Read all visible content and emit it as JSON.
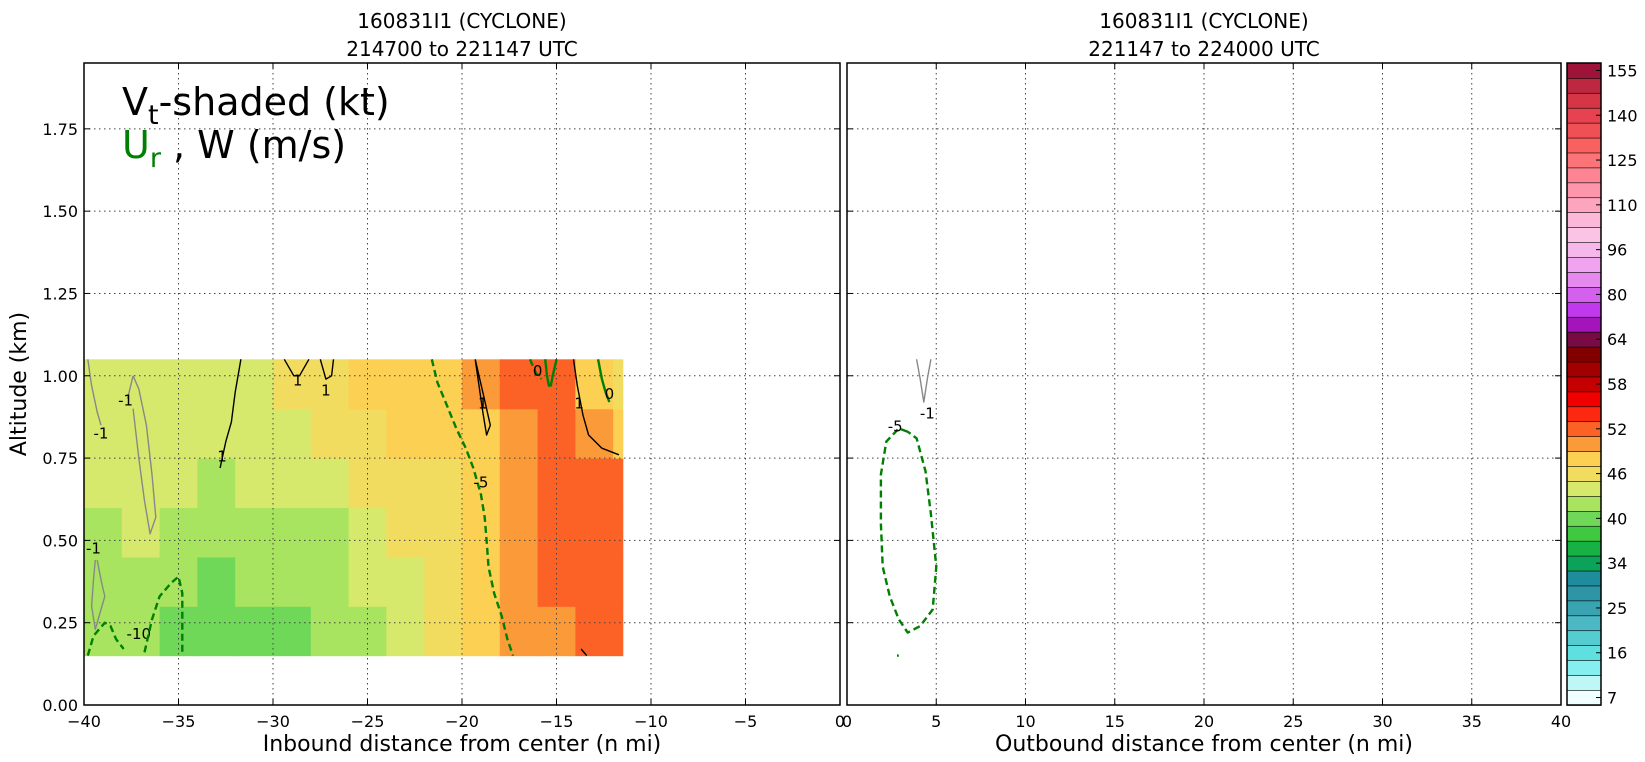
{
  "chart_data": [
    {
      "type": "heatmap",
      "panel": "inbound",
      "title_line1": "160831I1 (CYCLONE)",
      "title_line2": "214700 to 221147 UTC",
      "xlabel": "Inbound distance from center (n mi)",
      "ylabel": "Altitude (km)",
      "xlim": [
        -40,
        0
      ],
      "ylim": [
        0,
        1.95
      ],
      "xticks": [
        "−40",
        "−35",
        "−30",
        "−25",
        "−20",
        "−15",
        "−10",
        "−5",
        "0"
      ],
      "xtick_values": [
        -40,
        -35,
        -30,
        -25,
        -20,
        -15,
        -10,
        -5,
        0
      ],
      "yticks": [
        "0.00",
        "0.25",
        "0.50",
        "0.75",
        "1.00",
        "1.25",
        "1.50",
        "1.75"
      ],
      "ytick_values": [
        0,
        0.25,
        0.5,
        0.75,
        1.0,
        1.25,
        1.5,
        1.75
      ],
      "grid": true,
      "legend_text": {
        "line1_main": "V",
        "line1_sub": "t",
        "line1_rest": "-shaded (kt)",
        "line2_main": "U",
        "line2_sub": "r",
        "line2_rest": " , W (m/s)"
      },
      "data_extent": {
        "x": [
          -40,
          -11.5
        ],
        "y": [
          0.15,
          1.05
        ]
      },
      "shaded_vt_kt": {
        "x": [
          -40,
          -38,
          -36,
          -34,
          -32,
          -30,
          -28,
          -26,
          -24,
          -22,
          -20,
          -18,
          -16,
          -14,
          -12,
          -11.5
        ],
        "y": [
          0.15,
          0.3,
          0.45,
          0.6,
          0.75,
          0.9,
          1.05
        ],
        "values": [
          [
            42,
            44,
            41,
            40,
            40,
            41,
            41,
            43,
            44,
            45,
            47,
            50,
            51,
            52,
            52,
            52
          ],
          [
            42,
            44,
            43,
            41,
            41,
            42,
            41,
            43,
            44,
            46,
            47,
            50,
            51,
            53,
            53,
            53
          ],
          [
            43,
            44,
            44,
            42,
            42,
            43,
            42,
            44,
            45,
            46,
            48,
            50,
            51,
            53,
            54,
            54
          ],
          [
            44,
            44,
            44,
            43,
            43,
            44,
            43,
            45,
            46,
            47,
            48,
            50,
            52,
            53,
            53,
            53
          ],
          [
            45,
            44,
            45,
            44,
            44,
            45,
            45,
            46,
            47,
            48,
            48,
            50,
            52,
            53,
            51,
            51
          ],
          [
            46,
            45,
            46,
            45,
            44,
            46,
            47,
            48,
            48,
            49,
            49,
            51,
            53,
            52,
            48,
            47
          ],
          [
            46,
            45,
            45,
            44,
            44,
            46,
            47,
            48,
            49,
            49,
            49,
            51,
            53,
            51,
            46,
            45
          ]
        ]
      },
      "contours": [
        {
          "kind": "w",
          "color": "gray",
          "style": "solid",
          "label": "-1",
          "label_at": [
            -39.1,
            0.81
          ],
          "path": [
            [
              -39.8,
              1.05
            ],
            [
              -39.6,
              0.97
            ],
            [
              -39.3,
              0.89
            ],
            [
              -39.1,
              0.85
            ]
          ]
        },
        {
          "kind": "w",
          "color": "gray",
          "style": "solid",
          "label": "-1",
          "label_at": [
            -37.8,
            0.91
          ],
          "path": [
            [
              -37.4,
              1.0
            ],
            [
              -37.7,
              0.93
            ]
          ]
        },
        {
          "kind": "w",
          "color": "gray",
          "style": "solid",
          "label": "",
          "path": [
            [
              -37.4,
              0.9
            ],
            [
              -37.1,
              0.75
            ],
            [
              -36.8,
              0.62
            ],
            [
              -36.5,
              0.52
            ],
            [
              -36.2,
              0.57
            ],
            [
              -36.4,
              0.7
            ],
            [
              -36.7,
              0.85
            ],
            [
              -37.1,
              0.96
            ],
            [
              -37.4,
              1.0
            ]
          ]
        },
        {
          "kind": "w",
          "color": "gray",
          "style": "solid",
          "label": "-1",
          "label_at": [
            -39.5,
            0.46
          ],
          "path": [
            [
              -39.4,
              0.44
            ],
            [
              -39.5,
              0.38
            ],
            [
              -39.6,
              0.3
            ],
            [
              -39.4,
              0.23
            ],
            [
              -39.1,
              0.29
            ],
            [
              -38.9,
              0.33
            ],
            [
              -39.1,
              0.38
            ],
            [
              -39.3,
              0.44
            ]
          ]
        },
        {
          "kind": "w",
          "color": "black",
          "style": "solid",
          "label": "1",
          "label_at": [
            -32.7,
            0.74
          ],
          "path": [
            [
              -31.7,
              1.05
            ],
            [
              -32.0,
              0.95
            ],
            [
              -32.2,
              0.86
            ],
            [
              -32.5,
              0.8
            ],
            [
              -32.8,
              0.72
            ]
          ]
        },
        {
          "kind": "w",
          "color": "black",
          "style": "solid",
          "label": "1",
          "label_at": [
            -28.7,
            0.97
          ],
          "path": [
            [
              -29.4,
              1.05
            ],
            [
              -28.9,
              1.0
            ],
            [
              -28.6,
              1.0
            ],
            [
              -28.1,
              1.05
            ]
          ]
        },
        {
          "kind": "w",
          "color": "black",
          "style": "solid",
          "label": "1",
          "label_at": [
            -27.2,
            0.94
          ],
          "path": [
            [
              -27.5,
              1.05
            ],
            [
              -27.2,
              0.99
            ],
            [
              -26.9,
              1.0
            ],
            [
              -26.8,
              1.05
            ]
          ]
        },
        {
          "kind": "w",
          "color": "black",
          "style": "solid",
          "label": "1",
          "label_at": [
            -18.9,
            0.9
          ],
          "path": [
            [
              -19.3,
              1.05
            ],
            [
              -19.1,
              0.97
            ],
            [
              -18.9,
              0.89
            ],
            [
              -18.7,
              0.82
            ],
            [
              -18.5,
              0.85
            ],
            [
              -18.9,
              0.95
            ],
            [
              -19.3,
              1.05
            ]
          ]
        },
        {
          "kind": "w",
          "color": "black",
          "style": "solid",
          "label": "1",
          "label_at": [
            -13.8,
            0.9
          ],
          "path": [
            [
              -14.1,
              1.05
            ],
            [
              -13.9,
              0.97
            ],
            [
              -13.6,
              0.88
            ],
            [
              -13.3,
              0.82
            ],
            [
              -12.6,
              0.78
            ],
            [
              -11.7,
              0.76
            ]
          ]
        },
        {
          "kind": "w",
          "color": "black",
          "style": "solid",
          "label": "",
          "path": [
            [
              -13.7,
              0.17
            ],
            [
              -13.4,
              0.15
            ]
          ]
        },
        {
          "kind": "ur",
          "color": "green",
          "style": "dashed",
          "label": "-10",
          "label_at": [
            -37.1,
            0.2
          ],
          "path": [
            [
              -39.8,
              0.15
            ],
            [
              -39.5,
              0.21
            ],
            [
              -38.9,
              0.25
            ],
            [
              -38.6,
              0.24
            ],
            [
              -38.3,
              0.2
            ],
            [
              -37.9,
              0.17
            ]
          ]
        },
        {
          "kind": "ur",
          "color": "green",
          "style": "dashed",
          "label": "",
          "path": [
            [
              -36.8,
              0.16
            ],
            [
              -36.4,
              0.26
            ],
            [
              -36.0,
              0.33
            ],
            [
              -35.4,
              0.37
            ],
            [
              -35.0,
              0.39
            ],
            [
              -34.8,
              0.34
            ],
            [
              -34.8,
              0.15
            ]
          ]
        },
        {
          "kind": "ur",
          "color": "green",
          "style": "dashed",
          "label": "-5",
          "label_at": [
            -19.0,
            0.66
          ],
          "path": [
            [
              -21.6,
              1.05
            ],
            [
              -21.3,
              0.98
            ],
            [
              -20.8,
              0.91
            ],
            [
              -20.3,
              0.84
            ],
            [
              -19.8,
              0.78
            ],
            [
              -19.4,
              0.72
            ],
            [
              -19.0,
              0.64
            ],
            [
              -18.8,
              0.57
            ],
            [
              -18.7,
              0.5
            ],
            [
              -18.6,
              0.42
            ],
            [
              -18.3,
              0.34
            ],
            [
              -17.9,
              0.27
            ],
            [
              -17.6,
              0.2
            ],
            [
              -17.3,
              0.15
            ]
          ]
        },
        {
          "kind": "ur",
          "color": "green",
          "style": "dashed",
          "label": "0",
          "label_at": [
            -16.0,
            1.0
          ],
          "path": [
            [
              -16.4,
              1.05
            ],
            [
              -16.1,
              1.01
            ],
            [
              -15.8,
              0.99
            ]
          ]
        },
        {
          "kind": "ur",
          "color": "green",
          "style": "solid",
          "label": "",
          "path": [
            [
              -15.0,
              1.05
            ],
            [
              -15.2,
              1.0
            ],
            [
              -15.3,
              0.97
            ],
            [
              -15.4,
              0.97
            ],
            [
              -15.5,
              1.0
            ],
            [
              -15.6,
              1.05
            ]
          ]
        },
        {
          "kind": "ur",
          "color": "green",
          "style": "solid",
          "label": "0",
          "label_at": [
            -12.2,
            0.93
          ],
          "path": [
            [
              -12.8,
              1.05
            ],
            [
              -12.6,
              0.99
            ],
            [
              -12.4,
              0.95
            ],
            [
              -12.2,
              0.92
            ]
          ]
        }
      ]
    },
    {
      "type": "heatmap",
      "panel": "outbound",
      "title_line1": "160831I1 (CYCLONE)",
      "title_line2": "221147 to 224000 UTC",
      "xlabel": "Outbound distance from center (n mi)",
      "xlim": [
        0,
        40
      ],
      "ylim": [
        0,
        1.95
      ],
      "xticks": [
        "0",
        "5",
        "10",
        "15",
        "20",
        "25",
        "30",
        "35",
        "40"
      ],
      "xtick_values": [
        0,
        5,
        10,
        15,
        20,
        25,
        30,
        35,
        40
      ],
      "ytick_values": [
        0,
        0.25,
        0.5,
        0.75,
        1.0,
        1.25,
        1.5,
        1.75
      ],
      "grid": true,
      "contours": [
        {
          "kind": "w",
          "color": "gray",
          "style": "solid",
          "label": "-1",
          "label_at": [
            4.5,
            0.87
          ],
          "path": [
            [
              3.9,
              1.05
            ],
            [
              4.1,
              0.99
            ],
            [
              4.3,
              0.92
            ],
            [
              4.5,
              0.99
            ],
            [
              4.7,
              1.05
            ]
          ]
        },
        {
          "kind": "ur",
          "color": "green",
          "style": "dashed",
          "label": "-5",
          "label_at": [
            2.7,
            0.83
          ],
          "path": [
            [
              3.4,
              0.83
            ],
            [
              2.9,
              0.84
            ],
            [
              2.2,
              0.8
            ],
            [
              1.9,
              0.7
            ],
            [
              1.9,
              0.55
            ],
            [
              2.0,
              0.42
            ],
            [
              2.4,
              0.33
            ],
            [
              2.9,
              0.26
            ],
            [
              3.4,
              0.22
            ],
            [
              4.1,
              0.24
            ],
            [
              4.8,
              0.29
            ],
            [
              5.0,
              0.42
            ],
            [
              4.7,
              0.58
            ],
            [
              4.4,
              0.71
            ],
            [
              3.9,
              0.81
            ],
            [
              3.4,
              0.83
            ]
          ]
        },
        {
          "kind": "ur",
          "color": "green",
          "style": "dashed",
          "label": "",
          "path": [
            [
              2.8,
              0.15
            ],
            [
              2.9,
              0.15
            ]
          ]
        }
      ]
    },
    {
      "type": "colorbar",
      "units": "kt",
      "tick_labels": [
        "7",
        "16",
        "25",
        "34",
        "40",
        "46",
        "52",
        "58",
        "64",
        "80",
        "96",
        "110",
        "125",
        "140",
        "155"
      ],
      "levels": [
        {
          "value": 7,
          "color": "#f0ffff"
        },
        {
          "value": 10,
          "color": "#bff6f6"
        },
        {
          "value": 13,
          "color": "#85efef"
        },
        {
          "value": 16,
          "color": "#5ee0e0"
        },
        {
          "value": 19,
          "color": "#55cdd0"
        },
        {
          "value": 22,
          "color": "#4cb8c4"
        },
        {
          "value": 25,
          "color": "#3aa3b2"
        },
        {
          "value": 28,
          "color": "#2e95a6"
        },
        {
          "value": 31,
          "color": "#1f8c9b"
        },
        {
          "value": 34,
          "color": "#0ca25a"
        },
        {
          "value": 36,
          "color": "#18b244"
        },
        {
          "value": 38,
          "color": "#40c840"
        },
        {
          "value": 40,
          "color": "#6fd858"
        },
        {
          "value": 42,
          "color": "#a8e460"
        },
        {
          "value": 44,
          "color": "#d7e96c"
        },
        {
          "value": 46,
          "color": "#f2dc60"
        },
        {
          "value": 48,
          "color": "#fbd053"
        },
        {
          "value": 50,
          "color": "#fb9a38"
        },
        {
          "value": 52,
          "color": "#fc6226"
        },
        {
          "value": 54,
          "color": "#fc2810"
        },
        {
          "value": 56,
          "color": "#f10000"
        },
        {
          "value": 58,
          "color": "#c50000"
        },
        {
          "value": 60,
          "color": "#a20000"
        },
        {
          "value": 62,
          "color": "#800000"
        },
        {
          "value": 64,
          "color": "#780a44"
        },
        {
          "value": 70,
          "color": "#a414bb"
        },
        {
          "value": 75,
          "color": "#c139ec"
        },
        {
          "value": 80,
          "color": "#d461ee"
        },
        {
          "value": 85,
          "color": "#e589ee"
        },
        {
          "value": 90,
          "color": "#f0a3ef"
        },
        {
          "value": 96,
          "color": "#f5b8ea"
        },
        {
          "value": 100,
          "color": "#fbc4e4"
        },
        {
          "value": 105,
          "color": "#fbb8d8"
        },
        {
          "value": 110,
          "color": "#fda5bf"
        },
        {
          "value": 115,
          "color": "#fd95ac"
        },
        {
          "value": 120,
          "color": "#fd8593"
        },
        {
          "value": 125,
          "color": "#fc7478"
        },
        {
          "value": 130,
          "color": "#f96060"
        },
        {
          "value": 135,
          "color": "#ef5055"
        },
        {
          "value": 140,
          "color": "#e64250"
        },
        {
          "value": 145,
          "color": "#d53545"
        },
        {
          "value": 150,
          "color": "#bb2840"
        },
        {
          "value": 155,
          "color": "#9e1338"
        }
      ]
    }
  ]
}
